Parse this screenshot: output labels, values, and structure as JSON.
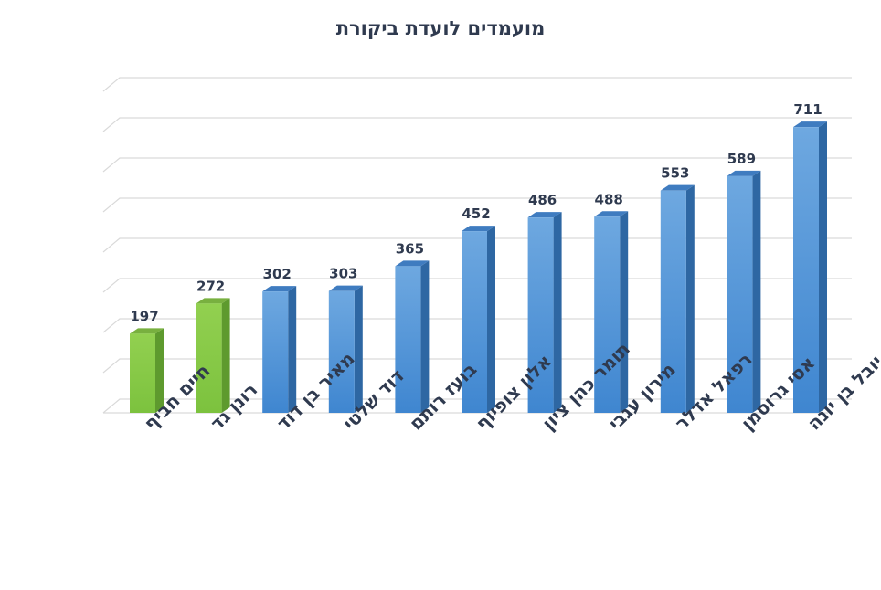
{
  "chart_data": {
    "type": "bar",
    "title": "מועמדים לועדת ביקורת",
    "categories": [
      "חיים חביף",
      "רונן גד",
      "מאיר בן דוד",
      "דוד שלטי",
      "בועז רותם",
      "אלון צופיוף",
      "תומר כהן ציון",
      "מירון עגבי",
      "רפאל אדלר",
      "אסי גרוסמן",
      "יובל בן יונה"
    ],
    "values": [
      197,
      272,
      302,
      303,
      365,
      452,
      486,
      488,
      553,
      589,
      711
    ],
    "highlight": [
      true,
      true,
      false,
      false,
      false,
      false,
      false,
      false,
      false,
      false,
      false
    ],
    "colors": {
      "highlight": "#8fd14f",
      "normal": "#5b9bd5"
    },
    "ylim": [
      0,
      800
    ],
    "grid": true,
    "legend": "none",
    "xlabel": "",
    "ylabel": ""
  }
}
